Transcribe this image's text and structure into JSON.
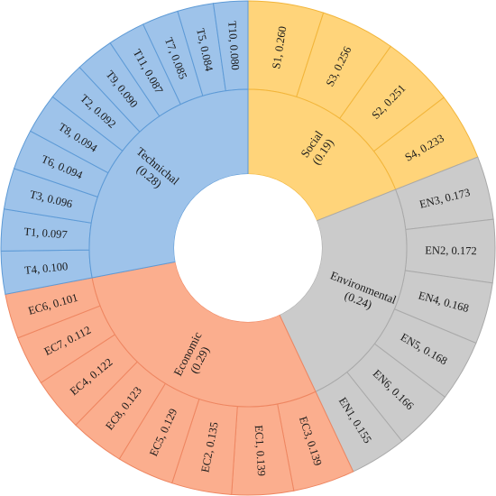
{
  "chart_data": {
    "type": "sunburst",
    "title": "",
    "start_angle_deg": 0,
    "direction": "clockwise",
    "groups": [
      {
        "name": "Social",
        "label_line1": "Social",
        "label_line2": "(0.19)",
        "weight": 0.19,
        "fill": "#FFD47A",
        "stroke": "#F2B53A",
        "items": [
          {
            "label": "S1, 0.260",
            "code": "S1",
            "value": 0.26
          },
          {
            "label": "S3, 0.256",
            "code": "S3",
            "value": 0.256
          },
          {
            "label": "S2, 0.251",
            "code": "S2",
            "value": 0.251
          },
          {
            "label": "S4, 0.233",
            "code": "S4",
            "value": 0.233
          }
        ]
      },
      {
        "name": "Environmental",
        "label_line1": "Environmental",
        "label_line2": "(0.24)",
        "weight": 0.24,
        "fill": "#CBCBCB",
        "stroke": "#A9A9A9",
        "items": [
          {
            "label": "EN3, 0.173",
            "code": "EN3",
            "value": 0.173
          },
          {
            "label": "EN2, 0.172",
            "code": "EN2",
            "value": 0.172
          },
          {
            "label": "EN4, 0.168",
            "code": "EN4",
            "value": 0.168
          },
          {
            "label": "EN5, 0.168",
            "code": "EN5",
            "value": 0.168
          },
          {
            "label": "EN6, 0.166",
            "code": "EN6",
            "value": 0.166
          },
          {
            "label": "EN1, 0.155",
            "code": "EN1",
            "value": 0.155
          }
        ]
      },
      {
        "name": "Economic",
        "label_line1": "Economic",
        "label_line2": "(0.29)",
        "weight": 0.29,
        "fill": "#FBAE8E",
        "stroke": "#EE8661",
        "items": [
          {
            "label": "EC3, 0.139",
            "code": "EC3",
            "value": 0.139
          },
          {
            "label": "EC1, 0.139",
            "code": "EC1",
            "value": 0.139
          },
          {
            "label": "EC2, 0.135",
            "code": "EC2",
            "value": 0.135
          },
          {
            "label": "EC5, 0.129",
            "code": "EC5",
            "value": 0.129
          },
          {
            "label": "EC8, 0.123",
            "code": "EC8",
            "value": 0.123
          },
          {
            "label": "EC4, 0.122",
            "code": "EC4",
            "value": 0.122
          },
          {
            "label": "EC7, 0.112",
            "code": "EC7",
            "value": 0.112
          },
          {
            "label": "EC6, 0.101",
            "code": "EC6",
            "value": 0.101
          }
        ]
      },
      {
        "name": "Technichal",
        "label_line1": "Technichal",
        "label_line2": "(0.28)",
        "weight": 0.28,
        "fill": "#9EC3EA",
        "stroke": "#5D9AD6",
        "items": [
          {
            "label": "T4, 0.100",
            "code": "T4",
            "value": 0.1
          },
          {
            "label": "T1, 0.097",
            "code": "T1",
            "value": 0.097
          },
          {
            "label": "T3, 0.096",
            "code": "T3",
            "value": 0.096
          },
          {
            "label": "T6, 0.094",
            "code": "T6",
            "value": 0.094
          },
          {
            "label": "T8, 0.094",
            "code": "T8",
            "value": 0.094
          },
          {
            "label": "T2, 0.092",
            "code": "T2",
            "value": 0.092
          },
          {
            "label": "T9, 0.090",
            "code": "T9",
            "value": 0.09
          },
          {
            "label": "T11, 0.087",
            "code": "T11",
            "value": 0.087
          },
          {
            "label": "T7, 0.085",
            "code": "T7",
            "value": 0.085
          },
          {
            "label": "T5, 0.084",
            "code": "T5",
            "value": 0.084
          },
          {
            "label": "T10, 0.080",
            "code": "T10",
            "value": 0.08
          }
        ]
      }
    ]
  }
}
